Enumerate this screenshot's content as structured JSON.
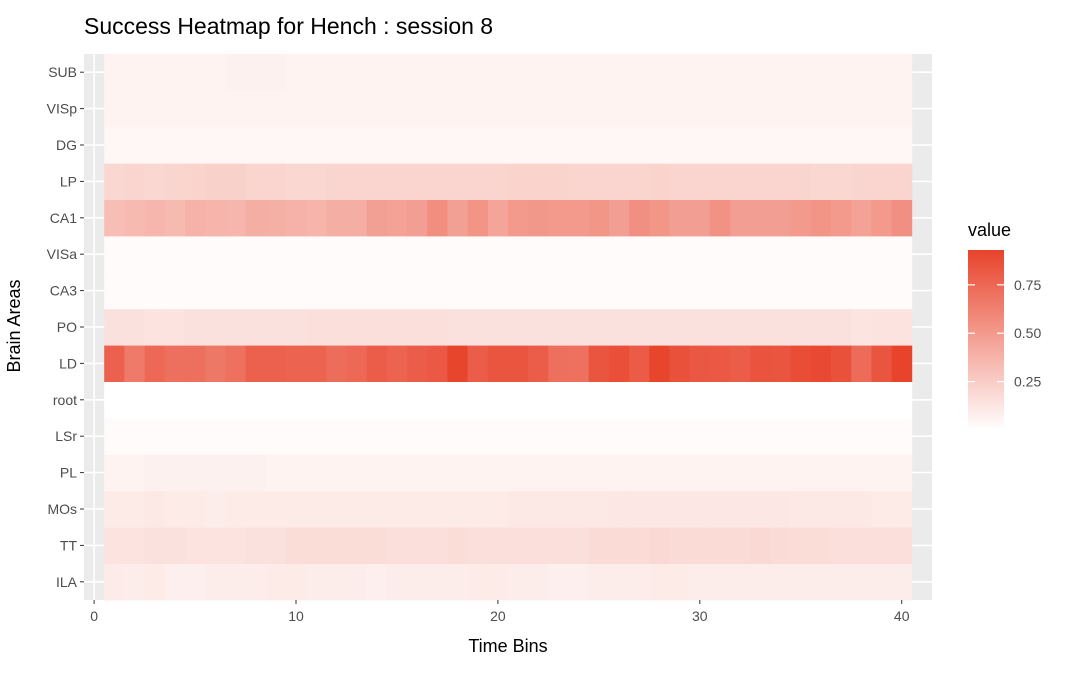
{
  "chart_data": {
    "type": "heatmap",
    "title": "Success Heatmap for Hench : session 8",
    "xlabel": "Time Bins",
    "ylabel": "Brain Areas",
    "x_ticks": [
      0,
      10,
      20,
      30,
      40
    ],
    "xlim": [
      -0.5,
      41.5
    ],
    "x_bins": [
      1,
      40
    ],
    "y_categories": [
      "ILA",
      "TT",
      "MOs",
      "PL",
      "LSr",
      "root",
      "LD",
      "PO",
      "CA3",
      "VISa",
      "CA1",
      "LP",
      "DG",
      "VISp",
      "SUB"
    ],
    "legend": {
      "title": "value",
      "ticks": [
        0.25,
        0.5,
        0.75
      ],
      "tick_labels": [
        "0.25",
        "0.50",
        "0.75"
      ],
      "range": [
        0.0,
        0.93
      ],
      "low_color": "#FFFFFF",
      "high_color": "#E8432B",
      "placement": "right"
    },
    "colors": {
      "panel_background": "#EBEBEB",
      "gridline": "#FFFFFF"
    },
    "rows": [
      {
        "area": "ILA",
        "values": [
          0.1,
          0.09,
          0.1,
          0.08,
          0.08,
          0.09,
          0.09,
          0.09,
          0.1,
          0.1,
          0.09,
          0.09,
          0.09,
          0.08,
          0.09,
          0.09,
          0.09,
          0.09,
          0.1,
          0.1,
          0.09,
          0.09,
          0.08,
          0.08,
          0.09,
          0.09,
          0.09,
          0.1,
          0.1,
          0.09,
          0.09,
          0.09,
          0.09,
          0.09,
          0.09,
          0.09,
          0.09,
          0.09,
          0.09,
          0.09
        ]
      },
      {
        "area": "TT",
        "values": [
          0.14,
          0.14,
          0.15,
          0.15,
          0.14,
          0.14,
          0.14,
          0.15,
          0.15,
          0.17,
          0.17,
          0.17,
          0.17,
          0.17,
          0.16,
          0.16,
          0.16,
          0.17,
          0.16,
          0.16,
          0.16,
          0.16,
          0.16,
          0.16,
          0.18,
          0.18,
          0.18,
          0.19,
          0.18,
          0.18,
          0.18,
          0.18,
          0.19,
          0.18,
          0.17,
          0.17,
          0.16,
          0.16,
          0.16,
          0.16
        ]
      },
      {
        "area": "MOs",
        "values": [
          0.1,
          0.1,
          0.11,
          0.1,
          0.1,
          0.09,
          0.1,
          0.1,
          0.1,
          0.1,
          0.1,
          0.1,
          0.1,
          0.1,
          0.1,
          0.1,
          0.1,
          0.1,
          0.1,
          0.1,
          0.11,
          0.11,
          0.11,
          0.11,
          0.11,
          0.12,
          0.12,
          0.12,
          0.12,
          0.12,
          0.12,
          0.12,
          0.12,
          0.12,
          0.11,
          0.11,
          0.11,
          0.11,
          0.1,
          0.1
        ]
      },
      {
        "area": "PL",
        "values": [
          0.06,
          0.06,
          0.07,
          0.07,
          0.07,
          0.07,
          0.07,
          0.07,
          0.06,
          0.06,
          0.06,
          0.06,
          0.06,
          0.06,
          0.06,
          0.06,
          0.06,
          0.06,
          0.06,
          0.06,
          0.06,
          0.06,
          0.06,
          0.06,
          0.06,
          0.06,
          0.06,
          0.06,
          0.06,
          0.06,
          0.06,
          0.06,
          0.06,
          0.06,
          0.06,
          0.06,
          0.06,
          0.06,
          0.06,
          0.06
        ]
      },
      {
        "area": "LSr",
        "values": [
          0.02,
          0.02,
          0.02,
          0.02,
          0.02,
          0.02,
          0.02,
          0.02,
          0.02,
          0.02,
          0.02,
          0.02,
          0.02,
          0.02,
          0.02,
          0.02,
          0.02,
          0.02,
          0.02,
          0.02,
          0.02,
          0.02,
          0.02,
          0.02,
          0.02,
          0.02,
          0.02,
          0.02,
          0.02,
          0.02,
          0.02,
          0.02,
          0.02,
          0.02,
          0.02,
          0.02,
          0.02,
          0.02,
          0.02,
          0.02
        ]
      },
      {
        "area": "root",
        "values": [
          0.0,
          0.0,
          0.0,
          0.0,
          0.0,
          0.0,
          0.0,
          0.0,
          0.0,
          0.0,
          0.0,
          0.0,
          0.0,
          0.0,
          0.0,
          0.0,
          0.0,
          0.0,
          0.0,
          0.0,
          0.0,
          0.0,
          0.0,
          0.0,
          0.0,
          0.0,
          0.0,
          0.0,
          0.0,
          0.0,
          0.0,
          0.0,
          0.0,
          0.0,
          0.0,
          0.0,
          0.0,
          0.0,
          0.0,
          0.0
        ]
      },
      {
        "area": "LD",
        "values": [
          0.78,
          0.66,
          0.74,
          0.71,
          0.71,
          0.67,
          0.7,
          0.78,
          0.78,
          0.77,
          0.77,
          0.72,
          0.74,
          0.8,
          0.77,
          0.8,
          0.82,
          0.92,
          0.8,
          0.84,
          0.84,
          0.8,
          0.71,
          0.7,
          0.84,
          0.87,
          0.81,
          0.92,
          0.86,
          0.83,
          0.82,
          0.8,
          0.85,
          0.84,
          0.88,
          0.9,
          0.86,
          0.73,
          0.84,
          0.93
        ]
      },
      {
        "area": "PO",
        "values": [
          0.15,
          0.15,
          0.14,
          0.14,
          0.15,
          0.15,
          0.15,
          0.15,
          0.15,
          0.15,
          0.16,
          0.16,
          0.16,
          0.16,
          0.16,
          0.16,
          0.16,
          0.15,
          0.15,
          0.15,
          0.15,
          0.15,
          0.15,
          0.15,
          0.15,
          0.15,
          0.15,
          0.15,
          0.15,
          0.15,
          0.15,
          0.15,
          0.15,
          0.15,
          0.15,
          0.15,
          0.15,
          0.13,
          0.14,
          0.14
        ]
      },
      {
        "area": "CA3",
        "values": [
          0.02,
          0.02,
          0.02,
          0.02,
          0.02,
          0.02,
          0.02,
          0.02,
          0.02,
          0.02,
          0.02,
          0.02,
          0.02,
          0.02,
          0.02,
          0.02,
          0.02,
          0.02,
          0.02,
          0.02,
          0.02,
          0.02,
          0.02,
          0.02,
          0.02,
          0.02,
          0.02,
          0.02,
          0.02,
          0.02,
          0.02,
          0.02,
          0.02,
          0.02,
          0.02,
          0.02,
          0.02,
          0.02,
          0.02,
          0.02
        ]
      },
      {
        "area": "VISa",
        "values": [
          0.02,
          0.02,
          0.02,
          0.02,
          0.02,
          0.02,
          0.02,
          0.02,
          0.02,
          0.02,
          0.02,
          0.02,
          0.02,
          0.02,
          0.02,
          0.02,
          0.02,
          0.02,
          0.02,
          0.02,
          0.02,
          0.02,
          0.02,
          0.02,
          0.02,
          0.02,
          0.02,
          0.02,
          0.02,
          0.02,
          0.02,
          0.02,
          0.02,
          0.02,
          0.02,
          0.02,
          0.02,
          0.02,
          0.02,
          0.02
        ]
      },
      {
        "area": "CA1",
        "values": [
          0.32,
          0.34,
          0.36,
          0.34,
          0.38,
          0.37,
          0.36,
          0.4,
          0.39,
          0.38,
          0.37,
          0.4,
          0.4,
          0.47,
          0.46,
          0.48,
          0.56,
          0.47,
          0.53,
          0.45,
          0.5,
          0.51,
          0.5,
          0.5,
          0.52,
          0.48,
          0.55,
          0.52,
          0.48,
          0.48,
          0.54,
          0.48,
          0.48,
          0.48,
          0.5,
          0.53,
          0.5,
          0.46,
          0.5,
          0.55
        ]
      },
      {
        "area": "LP",
        "values": [
          0.2,
          0.21,
          0.2,
          0.21,
          0.22,
          0.23,
          0.23,
          0.21,
          0.21,
          0.2,
          0.2,
          0.21,
          0.21,
          0.21,
          0.21,
          0.21,
          0.21,
          0.21,
          0.21,
          0.21,
          0.22,
          0.22,
          0.22,
          0.21,
          0.21,
          0.21,
          0.21,
          0.22,
          0.21,
          0.21,
          0.21,
          0.21,
          0.21,
          0.21,
          0.21,
          0.2,
          0.2,
          0.21,
          0.21,
          0.21
        ]
      },
      {
        "area": "DG",
        "values": [
          0.04,
          0.04,
          0.04,
          0.04,
          0.04,
          0.04,
          0.04,
          0.04,
          0.04,
          0.04,
          0.04,
          0.04,
          0.04,
          0.04,
          0.04,
          0.04,
          0.04,
          0.04,
          0.04,
          0.04,
          0.04,
          0.04,
          0.04,
          0.04,
          0.04,
          0.04,
          0.04,
          0.04,
          0.04,
          0.04,
          0.04,
          0.04,
          0.04,
          0.04,
          0.04,
          0.04,
          0.04,
          0.04,
          0.04,
          0.04
        ]
      },
      {
        "area": "VISp",
        "values": [
          0.06,
          0.06,
          0.06,
          0.06,
          0.06,
          0.06,
          0.06,
          0.06,
          0.06,
          0.06,
          0.06,
          0.06,
          0.06,
          0.06,
          0.06,
          0.06,
          0.06,
          0.06,
          0.06,
          0.06,
          0.06,
          0.06,
          0.06,
          0.06,
          0.06,
          0.06,
          0.06,
          0.06,
          0.06,
          0.06,
          0.06,
          0.06,
          0.06,
          0.06,
          0.06,
          0.06,
          0.06,
          0.06,
          0.06,
          0.06
        ]
      },
      {
        "area": "SUB",
        "values": [
          0.06,
          0.06,
          0.06,
          0.06,
          0.06,
          0.06,
          0.07,
          0.07,
          0.07,
          0.06,
          0.06,
          0.06,
          0.06,
          0.06,
          0.06,
          0.06,
          0.06,
          0.06,
          0.06,
          0.06,
          0.06,
          0.06,
          0.06,
          0.06,
          0.06,
          0.06,
          0.06,
          0.06,
          0.06,
          0.06,
          0.06,
          0.06,
          0.06,
          0.06,
          0.06,
          0.06,
          0.06,
          0.06,
          0.06,
          0.06
        ]
      }
    ]
  }
}
